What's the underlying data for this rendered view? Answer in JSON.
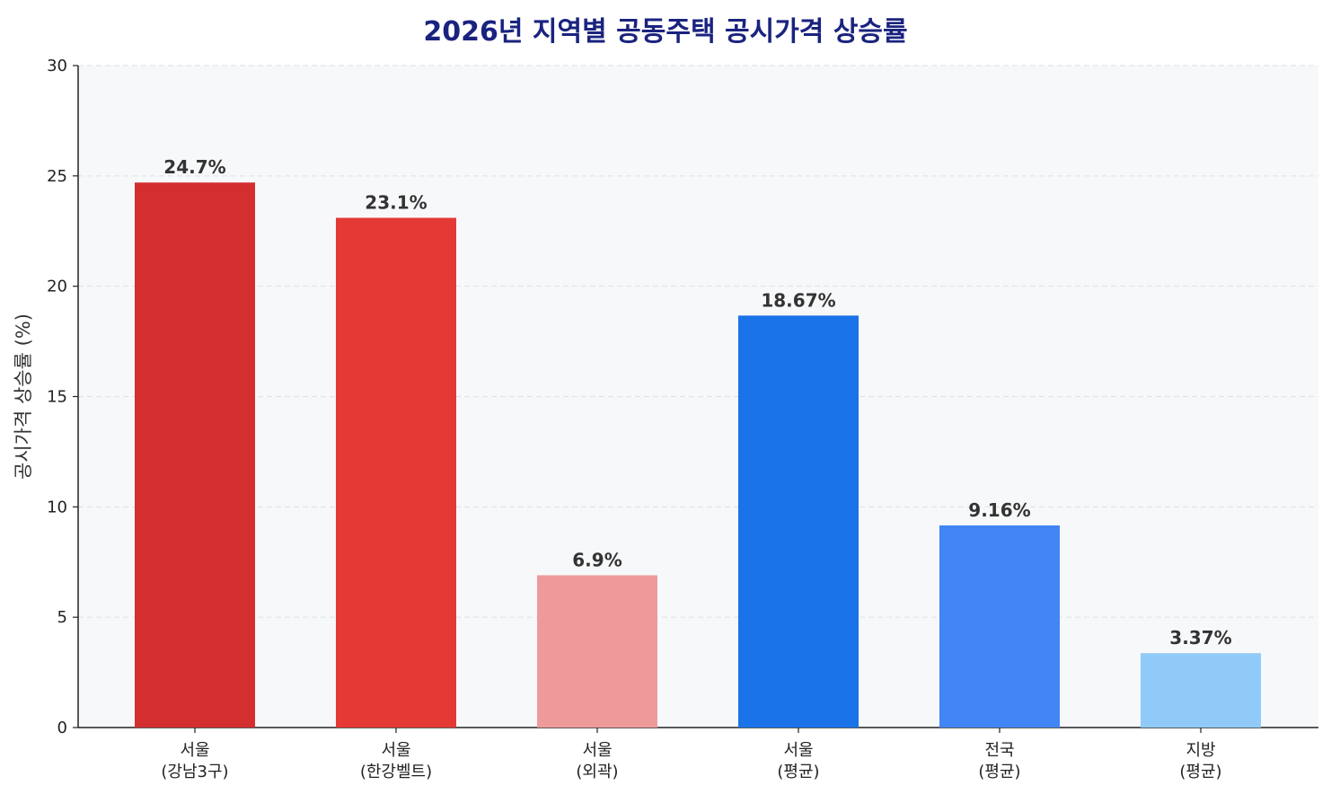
{
  "chart_data": {
    "type": "bar",
    "title": "2026년 지역별 공동주택 공시가격 상승률",
    "xlabel": "",
    "ylabel": "공시가격 상승률 (%)",
    "ylim": [
      0,
      30
    ],
    "yticks": [
      0,
      5,
      10,
      15,
      20,
      25,
      30
    ],
    "grid": "horizontal dashed",
    "categories": [
      [
        "서울",
        "(강남3구)"
      ],
      [
        "서울",
        "(한강벨트)"
      ],
      [
        "서울",
        "(외곽)"
      ],
      [
        "서울",
        "(평균)"
      ],
      [
        "전국",
        "(평균)"
      ],
      [
        "지방",
        "(평균)"
      ]
    ],
    "values": [
      24.7,
      23.1,
      6.9,
      18.67,
      9.16,
      3.37
    ],
    "data_labels": [
      "24.7%",
      "23.1%",
      "6.9%",
      "18.67%",
      "9.16%",
      "3.37%"
    ],
    "colors": [
      "#d32f2f",
      "#e53935",
      "#ef9a9a",
      "#1a73e8",
      "#4285f4",
      "#90caf9"
    ],
    "plot_background": "#f7f8fa",
    "title_color": "#1a237e"
  }
}
